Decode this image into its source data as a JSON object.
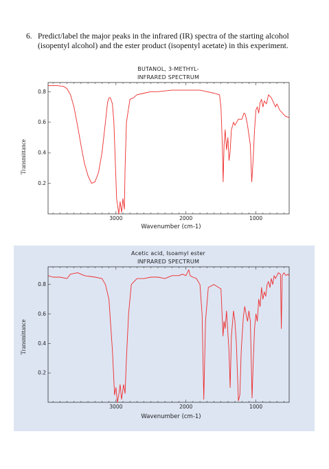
{
  "question": {
    "number": "6.",
    "text": "Predict/label the major peaks in the infrared (IR) spectra of the starting alcohol (isopentyl alcohol) and the ester product (isopentyl acetate) in this experiment."
  },
  "colors": {
    "line": "#ee2a2a",
    "panel_bg": "#dde5f3"
  },
  "chart_data": [
    {
      "type": "line",
      "title_line1": "BUTANOL, 3-METHYL-",
      "title_line2": "INFRARED SPECTRUM",
      "xlabel": "Wavenumber (cm-1)",
      "ylabel": "Transmittance",
      "xlim": [
        3970,
        525
      ],
      "ylim": [
        0.0,
        0.86
      ],
      "x_ticks": [
        3000,
        2000,
        1000
      ],
      "y_ticks": [
        0.2,
        0.4,
        0.6,
        0.8
      ],
      "y_tick_labels": [
        "0.2",
        "0.4",
        "0.6",
        "0.8"
      ],
      "grid": false,
      "legend": "none",
      "series": [
        {
          "points": [
            [
              3970,
              0.84
            ],
            [
              3850,
              0.84
            ],
            [
              3750,
              0.835
            ],
            [
              3700,
              0.82
            ],
            [
              3650,
              0.78
            ],
            [
              3600,
              0.7
            ],
            [
              3550,
              0.58
            ],
            [
              3500,
              0.45
            ],
            [
              3450,
              0.33
            ],
            [
              3400,
              0.25
            ],
            [
              3350,
              0.2
            ],
            [
              3300,
              0.21
            ],
            [
              3250,
              0.27
            ],
            [
              3200,
              0.4
            ],
            [
              3150,
              0.6
            ],
            [
              3120,
              0.73
            ],
            [
              3100,
              0.76
            ],
            [
              3080,
              0.76
            ],
            [
              3050,
              0.72
            ],
            [
              3030,
              0.6
            ],
            [
              3010,
              0.35
            ],
            [
              2990,
              0.1
            ],
            [
              2960,
              0.0
            ],
            [
              2940,
              0.08
            ],
            [
              2920,
              0.01
            ],
            [
              2900,
              0.1
            ],
            [
              2880,
              0.03
            ],
            [
              2870,
              0.3
            ],
            [
              2850,
              0.6
            ],
            [
              2800,
              0.75
            ],
            [
              2750,
              0.76
            ],
            [
              2700,
              0.78
            ],
            [
              2600,
              0.79
            ],
            [
              2500,
              0.8
            ],
            [
              2400,
              0.8
            ],
            [
              2200,
              0.81
            ],
            [
              2000,
              0.81
            ],
            [
              1800,
              0.81
            ],
            [
              1700,
              0.8
            ],
            [
              1600,
              0.79
            ],
            [
              1520,
              0.78
            ],
            [
              1500,
              0.7
            ],
            [
              1480,
              0.45
            ],
            [
              1468,
              0.21
            ],
            [
              1455,
              0.45
            ],
            [
              1440,
              0.55
            ],
            [
              1420,
              0.42
            ],
            [
              1400,
              0.5
            ],
            [
              1385,
              0.35
            ],
            [
              1370,
              0.4
            ],
            [
              1350,
              0.55
            ],
            [
              1320,
              0.6
            ],
            [
              1300,
              0.58
            ],
            [
              1250,
              0.62
            ],
            [
              1200,
              0.62
            ],
            [
              1170,
              0.66
            ],
            [
              1150,
              0.65
            ],
            [
              1120,
              0.58
            ],
            [
              1080,
              0.45
            ],
            [
              1060,
              0.21
            ],
            [
              1040,
              0.35
            ],
            [
              1020,
              0.55
            ],
            [
              1000,
              0.68
            ],
            [
              980,
              0.7
            ],
            [
              960,
              0.66
            ],
            [
              940,
              0.73
            ],
            [
              920,
              0.75
            ],
            [
              900,
              0.7
            ],
            [
              880,
              0.74
            ],
            [
              850,
              0.72
            ],
            [
              820,
              0.78
            ],
            [
              780,
              0.76
            ],
            [
              750,
              0.73
            ],
            [
              720,
              0.7
            ],
            [
              700,
              0.72
            ],
            [
              660,
              0.68
            ],
            [
              620,
              0.66
            ],
            [
              580,
              0.64
            ],
            [
              525,
              0.63
            ]
          ]
        }
      ]
    },
    {
      "type": "line",
      "title_line1": "Acetic acid, Isoamyl ester",
      "title_line2": "INFRARED SPECTRUM",
      "xlabel": "Wavenumber (cm-1)",
      "ylabel": "Transmittance",
      "xlim": [
        3970,
        525
      ],
      "ylim": [
        0.0,
        0.92
      ],
      "x_ticks": [
        3000,
        2000,
        1000
      ],
      "y_ticks": [
        0.2,
        0.4,
        0.6,
        0.8
      ],
      "y_tick_labels": [
        "0.2",
        "0.4",
        "0.6",
        "0.8"
      ],
      "grid": false,
      "legend": "none",
      "series": [
        {
          "points": [
            [
              3970,
              0.86
            ],
            [
              3900,
              0.85
            ],
            [
              3800,
              0.85
            ],
            [
              3700,
              0.84
            ],
            [
              3650,
              0.87
            ],
            [
              3550,
              0.88
            ],
            [
              3450,
              0.86
            ],
            [
              3300,
              0.85
            ],
            [
              3200,
              0.84
            ],
            [
              3150,
              0.8
            ],
            [
              3100,
              0.7
            ],
            [
              3050,
              0.35
            ],
            [
              3020,
              0.05
            ],
            [
              3000,
              0.1
            ],
            [
              2980,
              0.0
            ],
            [
              2960,
              0.05
            ],
            [
              2940,
              0.12
            ],
            [
              2920,
              0.02
            ],
            [
              2890,
              0.12
            ],
            [
              2870,
              0.06
            ],
            [
              2850,
              0.3
            ],
            [
              2820,
              0.6
            ],
            [
              2780,
              0.8
            ],
            [
              2700,
              0.84
            ],
            [
              2600,
              0.84
            ],
            [
              2500,
              0.85
            ],
            [
              2400,
              0.85
            ],
            [
              2300,
              0.84
            ],
            [
              2200,
              0.86
            ],
            [
              2100,
              0.86
            ],
            [
              2050,
              0.87
            ],
            [
              2000,
              0.86
            ],
            [
              1960,
              0.9
            ],
            [
              1940,
              0.86
            ],
            [
              1900,
              0.85
            ],
            [
              1850,
              0.84
            ],
            [
              1800,
              0.8
            ],
            [
              1770,
              0.6
            ],
            [
              1745,
              0.02
            ],
            [
              1720,
              0.55
            ],
            [
              1680,
              0.78
            ],
            [
              1600,
              0.8
            ],
            [
              1500,
              0.77
            ],
            [
              1470,
              0.45
            ],
            [
              1455,
              0.55
            ],
            [
              1440,
              0.5
            ],
            [
              1420,
              0.62
            ],
            [
              1385,
              0.35
            ],
            [
              1368,
              0.1
            ],
            [
              1350,
              0.45
            ],
            [
              1320,
              0.62
            ],
            [
              1300,
              0.55
            ],
            [
              1280,
              0.4
            ],
            [
              1250,
              0.01
            ],
            [
              1230,
              0.05
            ],
            [
              1210,
              0.35
            ],
            [
              1180,
              0.58
            ],
            [
              1160,
              0.65
            ],
            [
              1140,
              0.6
            ],
            [
              1120,
              0.55
            ],
            [
              1100,
              0.62
            ],
            [
              1080,
              0.55
            ],
            [
              1055,
              0.03
            ],
            [
              1040,
              0.25
            ],
            [
              1020,
              0.5
            ],
            [
              1000,
              0.6
            ],
            [
              980,
              0.55
            ],
            [
              960,
              0.7
            ],
            [
              940,
              0.65
            ],
            [
              920,
              0.78
            ],
            [
              900,
              0.7
            ],
            [
              880,
              0.75
            ],
            [
              860,
              0.72
            ],
            [
              840,
              0.8
            ],
            [
              820,
              0.82
            ],
            [
              800,
              0.78
            ],
            [
              780,
              0.84
            ],
            [
              760,
              0.8
            ],
            [
              740,
              0.86
            ],
            [
              720,
              0.84
            ],
            [
              700,
              0.86
            ],
            [
              680,
              0.88
            ],
            [
              650,
              0.87
            ],
            [
              637,
              0.5
            ],
            [
              625,
              0.86
            ],
            [
              600,
              0.88
            ],
            [
              570,
              0.86
            ],
            [
              545,
              0.87
            ],
            [
              525,
              0.86
            ]
          ]
        }
      ]
    }
  ]
}
